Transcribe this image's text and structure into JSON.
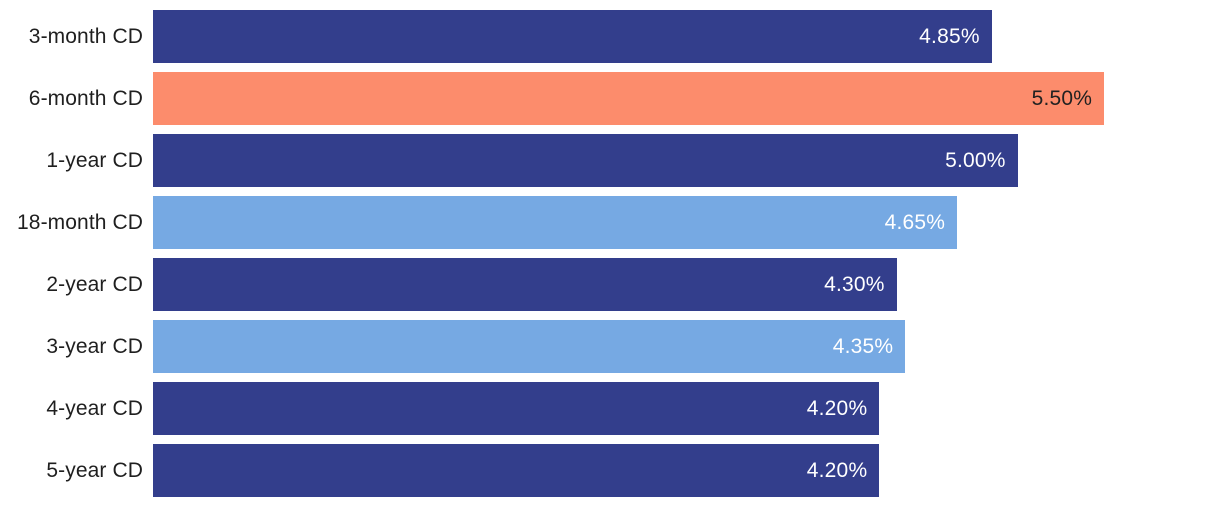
{
  "chart_data": {
    "type": "bar",
    "orientation": "horizontal",
    "title": "",
    "xlabel": "",
    "ylabel": "",
    "grid": false,
    "legend": false,
    "axes_visible": false,
    "xlim": [
      0,
      6.17
    ],
    "categories": [
      "3-month CD",
      "6-month CD",
      "1-year CD",
      "18-month CD",
      "2-year CD",
      "3-year CD",
      "4-year CD",
      "5-year CD"
    ],
    "values": [
      4.85,
      5.5,
      5.0,
      4.65,
      4.3,
      4.35,
      4.2,
      4.2
    ],
    "value_labels": [
      "4.85%",
      "5.50%",
      "5.00%",
      "4.65%",
      "4.30%",
      "4.35%",
      "4.20%",
      "4.20%"
    ],
    "bar_colors": [
      "#333E8C",
      "#FC8C6C",
      "#333E8C",
      "#76A9E3",
      "#333E8C",
      "#76A9E3",
      "#333E8C",
      "#333E8C"
    ],
    "value_label_colors": [
      "#FFFFFF",
      "#212121",
      "#FFFFFF",
      "#FFFFFF",
      "#FFFFFF",
      "#FFFFFF",
      "#FFFFFF",
      "#FFFFFF"
    ],
    "highlighted_category": "6-month CD",
    "colors": {
      "navy": "#333E8C",
      "salmon": "#FC8C6C",
      "light_blue": "#76A9E3",
      "category_text": "#1F1F1F",
      "background": "#FFFFFF"
    }
  }
}
